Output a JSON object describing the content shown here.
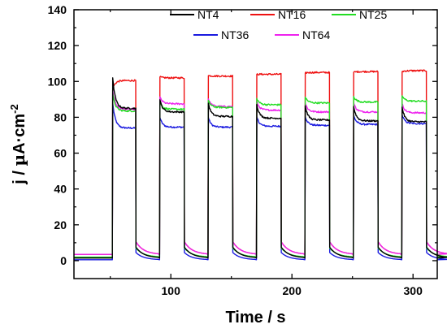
{
  "chart_data": {
    "type": "line",
    "xlabel": "Time / s",
    "ylabel_parts": {
      "main": "j / ",
      "mu": "µ",
      "unit": "A·cm",
      "exp": "-2"
    },
    "xlim": [
      20,
      320
    ],
    "ylim": [
      -10,
      140
    ],
    "xticks": [
      100,
      200,
      300
    ],
    "xticks_minor": [
      50,
      150,
      250
    ],
    "yticks": [
      0,
      20,
      40,
      60,
      80,
      100,
      120,
      140
    ],
    "yticks_minor": [
      10,
      30,
      50,
      70,
      90,
      110,
      130
    ],
    "legend_position": "top-right",
    "cycles": [
      {
        "on": 52,
        "off": 71
      },
      {
        "on": 91,
        "off": 111
      },
      {
        "on": 131,
        "off": 151
      },
      {
        "on": 171,
        "off": 191
      },
      {
        "on": 211,
        "off": 231
      },
      {
        "on": 251,
        "off": 271
      },
      {
        "on": 291,
        "off": 311
      }
    ],
    "series": [
      {
        "name": "NT4",
        "color": "#000000",
        "dark": 1.5,
        "spike": 102,
        "steady": [
          85,
          83,
          80.5,
          79.5,
          78.5,
          78,
          77.5
        ],
        "tail": 6
      },
      {
        "name": "NT16",
        "color": "#ee1111",
        "dark": 3.5,
        "spike": 96,
        "steady": [
          100.5,
          102,
          103,
          104,
          105,
          105.5,
          106
        ],
        "tail": 7
      },
      {
        "name": "NT25",
        "color": "#22dd22",
        "dark": 2.0,
        "spike": 93,
        "steady": [
          83.5,
          84.5,
          85.5,
          87,
          88,
          88.5,
          89
        ],
        "tail": 5
      },
      {
        "name": "NT36",
        "color": "#1a1adf",
        "dark": 0.5,
        "spike": 88,
        "steady": [
          74,
          74.5,
          74.5,
          75,
          75.5,
          76,
          76.5
        ],
        "tail": 4
      },
      {
        "name": "NT64",
        "color": "#ee22ee",
        "dark": 3.5,
        "spike": 95,
        "steady": [
          84.5,
          87.5,
          86,
          84,
          83,
          83,
          82.5
        ],
        "tail": 7
      }
    ]
  }
}
